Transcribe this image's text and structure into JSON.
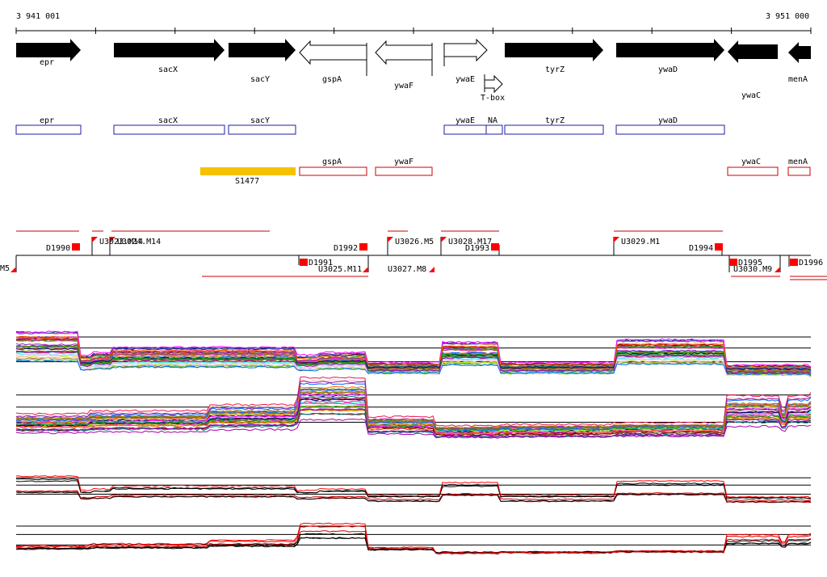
{
  "coords": {
    "start": "3 941 001",
    "end": "3 951 000"
  },
  "genes": [
    {
      "name": "epr",
      "strand": "+",
      "filled": true
    },
    {
      "name": "sacX",
      "strand": "+",
      "filled": true
    },
    {
      "name": "sacY",
      "strand": "+",
      "filled": true
    },
    {
      "name": "gspA",
      "strand": "-",
      "filled": false
    },
    {
      "name": "ywaF",
      "strand": "-",
      "filled": false
    },
    {
      "name": "ywaE",
      "strand": "+",
      "filled": false
    },
    {
      "name": "T-box",
      "strand": "+",
      "filled": false
    },
    {
      "name": "tyrZ",
      "strand": "+",
      "filled": true
    },
    {
      "name": "ywaD",
      "strand": "+",
      "filled": true
    },
    {
      "name": "ywaC",
      "strand": "-",
      "filled": true
    },
    {
      "name": "menA",
      "strand": "-",
      "filled": true
    }
  ],
  "blue_boxes": [
    "epr",
    "sacX",
    "sacY",
    "ywaE",
    "NA",
    "tyrZ",
    "ywaD"
  ],
  "red_boxes": [
    "gspA",
    "ywaF",
    "ywaC",
    "menA"
  ],
  "segment_label": "S1477",
  "features_top": [
    "U3023.M14",
    "U3024.M14",
    "D1990",
    "D1992",
    "U3026.M5",
    "U3028.M17",
    "D1993",
    "U3029.M1",
    "D1994"
  ],
  "features_bottom": [
    "M5",
    "D1991",
    "U3025.M11",
    "U3027.M8",
    "D1995",
    "U3030.M9",
    "D1996"
  ],
  "colors": {
    "forward": "#000000",
    "reverse_box": "#cc0000",
    "blue_box": "#1c1ca8",
    "segment": "#f5c200",
    "marker": "#ff0000"
  }
}
